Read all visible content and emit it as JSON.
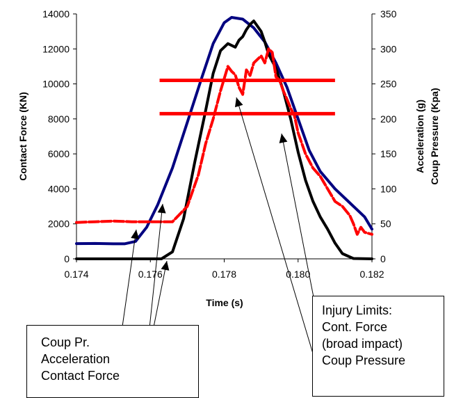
{
  "chart_data": {
    "type": "line",
    "xlabel": "Time (s)",
    "ylabel_left": "Contact Force (KN)",
    "ylabel_right_lines": [
      "Acceleration (g)",
      "Coup Pressure (Kpa)"
    ],
    "xlim": [
      0.174,
      0.182
    ],
    "ylim_left": [
      0,
      14000
    ],
    "ylim_right": [
      0,
      350
    ],
    "x_ticks": [
      "0.174",
      "0.176",
      "0.178",
      "0.180",
      "0.182"
    ],
    "y_left_ticks": [
      "0",
      "2000",
      "4000",
      "6000",
      "8000",
      "10000",
      "12000",
      "14000"
    ],
    "y_right_ticks": [
      "0",
      "50",
      "100",
      "150",
      "200",
      "250",
      "300",
      "350"
    ],
    "grid": false,
    "series": [
      {
        "color": "#000080",
        "axis": "left",
        "style": "solid",
        "points": [
          [
            0.174,
            870
          ],
          [
            0.1745,
            880
          ],
          [
            0.175,
            860
          ],
          [
            0.1753,
            860
          ],
          [
            0.1756,
            1000
          ],
          [
            0.1759,
            1800
          ],
          [
            0.1762,
            3100
          ],
          [
            0.1766,
            5200
          ],
          [
            0.177,
            7800
          ],
          [
            0.1774,
            10400
          ],
          [
            0.1777,
            12300
          ],
          [
            0.178,
            13500
          ],
          [
            0.1782,
            13800
          ],
          [
            0.1785,
            13700
          ],
          [
            0.1788,
            13200
          ],
          [
            0.1791,
            12400
          ],
          [
            0.1794,
            11200
          ],
          [
            0.1797,
            9800
          ],
          [
            0.18,
            8000
          ],
          [
            0.1803,
            6200
          ],
          [
            0.1806,
            5000
          ],
          [
            0.181,
            4000
          ],
          [
            0.1814,
            3200
          ],
          [
            0.1818,
            2400
          ],
          [
            0.182,
            1700
          ]
        ]
      },
      {
        "color": "#000000",
        "axis": "left",
        "style": "solid",
        "points": [
          [
            0.174,
            0
          ],
          [
            0.1755,
            0
          ],
          [
            0.1763,
            0
          ],
          [
            0.1766,
            400
          ],
          [
            0.1769,
            2300
          ],
          [
            0.1772,
            5500
          ],
          [
            0.1775,
            8500
          ],
          [
            0.1777,
            10600
          ],
          [
            0.1779,
            11900
          ],
          [
            0.1781,
            12300
          ],
          [
            0.1783,
            12100
          ],
          [
            0.1784,
            12500
          ],
          [
            0.1785,
            12700
          ],
          [
            0.1786,
            13100
          ],
          [
            0.1787,
            13400
          ],
          [
            0.1788,
            13600
          ],
          [
            0.179,
            13000
          ],
          [
            0.1791,
            12400
          ],
          [
            0.1792,
            11700
          ],
          [
            0.1794,
            10900
          ],
          [
            0.1796,
            9600
          ],
          [
            0.1798,
            8000
          ],
          [
            0.18,
            6100
          ],
          [
            0.1802,
            4500
          ],
          [
            0.1804,
            3300
          ],
          [
            0.1806,
            2400
          ],
          [
            0.1808,
            1700
          ],
          [
            0.181,
            900
          ],
          [
            0.1812,
            300
          ],
          [
            0.1815,
            20
          ],
          [
            0.182,
            0
          ]
        ]
      },
      {
        "color": "#ff0000",
        "axis": "right",
        "style": "dashed",
        "points": [
          [
            0.174,
            52
          ],
          [
            0.1745,
            53
          ],
          [
            0.175,
            54
          ],
          [
            0.1755,
            53
          ],
          [
            0.176,
            53
          ],
          [
            0.1766,
            53
          ],
          [
            0.177,
            75
          ],
          [
            0.1773,
            120
          ],
          [
            0.1775,
            165
          ],
          [
            0.1777,
            200
          ],
          [
            0.1779,
            240
          ],
          [
            0.1781,
            275
          ],
          [
            0.1782,
            268
          ],
          [
            0.1783,
            263
          ],
          [
            0.1784,
            245
          ],
          [
            0.1785,
            235
          ],
          [
            0.1786,
            270
          ],
          [
            0.1787,
            262
          ],
          [
            0.1788,
            280
          ],
          [
            0.179,
            290
          ],
          [
            0.1791,
            280
          ],
          [
            0.1792,
            300
          ],
          [
            0.1793,
            295
          ],
          [
            0.1794,
            260
          ],
          [
            0.1795,
            255
          ],
          [
            0.1796,
            240
          ],
          [
            0.1797,
            228
          ],
          [
            0.1798,
            215
          ],
          [
            0.1799,
            205
          ],
          [
            0.18,
            180
          ],
          [
            0.1802,
            150
          ],
          [
            0.1804,
            130
          ],
          [
            0.1806,
            118
          ],
          [
            0.1808,
            100
          ],
          [
            0.181,
            82
          ],
          [
            0.1812,
            75
          ],
          [
            0.1814,
            62
          ],
          [
            0.1815,
            50
          ],
          [
            0.1816,
            35
          ],
          [
            0.1817,
            45
          ],
          [
            0.1818,
            38
          ],
          [
            0.182,
            35
          ]
        ]
      }
    ],
    "limit_lines": [
      {
        "y": 10200,
        "x": [
          0.17625,
          0.181
        ],
        "color": "#ff0000"
      },
      {
        "y": 8300,
        "x": [
          0.17625,
          0.181
        ],
        "color": "#ff0000"
      }
    ],
    "annotations": [
      {
        "lines": [
          "Coup Pr.",
          "Acceleration",
          "Contact Force"
        ]
      },
      {
        "lines": [
          "Injury Limits:",
          "Cont. Force",
          "(broad impact)",
          "Coup Pressure"
        ]
      }
    ]
  }
}
